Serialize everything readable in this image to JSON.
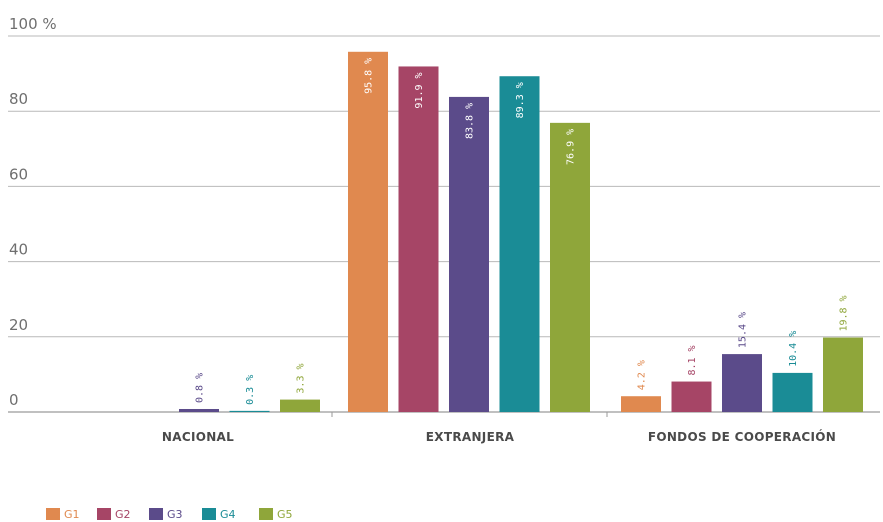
{
  "chart_data": {
    "type": "bar",
    "categories": [
      "NACIONAL",
      "EXTRANJERA",
      "FONDOS DE COOPERACIÓN"
    ],
    "ylim": [
      0,
      100
    ],
    "yticks": [
      0,
      20,
      40,
      60,
      80,
      100
    ],
    "ytick_labels": [
      "0",
      "20",
      "40",
      "60",
      "80",
      "100 %"
    ],
    "grid": true,
    "legend_position": "bottom-left",
    "series": [
      {
        "name": "G1",
        "color": "#e0894f",
        "values": [
          0,
          95.8,
          4.2
        ],
        "labels": [
          "",
          "95.8 %",
          "4.2 %"
        ]
      },
      {
        "name": "G2",
        "color": "#a64566",
        "values": [
          0,
          91.9,
          8.1
        ],
        "labels": [
          "",
          "91.9 %",
          "8.1 %"
        ]
      },
      {
        "name": "G3",
        "color": "#5b4b8a",
        "values": [
          0.8,
          83.8,
          15.4
        ],
        "labels": [
          "0.8 %",
          "83.8 %",
          "15.4 %"
        ]
      },
      {
        "name": "G4",
        "color": "#1a8c96",
        "values": [
          0.3,
          89.3,
          10.4
        ],
        "labels": [
          "0.3 %",
          "89.3 %",
          "10.4 %"
        ]
      },
      {
        "name": "G5",
        "color": "#8fa63a",
        "values": [
          3.3,
          76.9,
          19.8
        ],
        "labels": [
          "3.3 %",
          "76.9 %",
          "19.8 %"
        ]
      }
    ]
  }
}
